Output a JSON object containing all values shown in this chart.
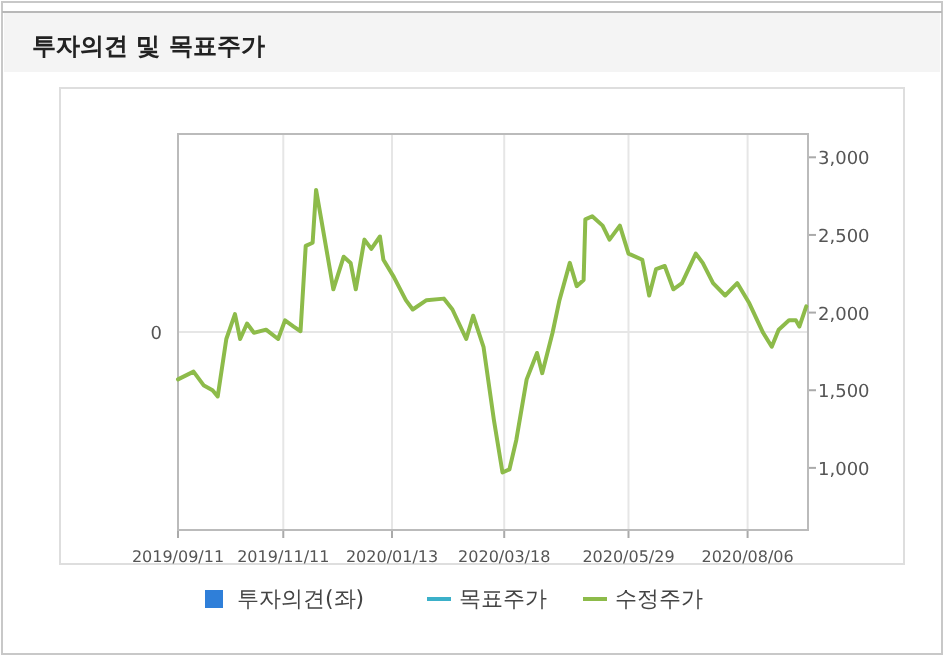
{
  "chart_data": {
    "type": "line",
    "title": "투자의견 및 목표주가",
    "xlim": [
      "2019-09-11",
      "2020-09-10"
    ],
    "xticks": [
      {
        "value": "2019-09-11",
        "label": "2019/09/11"
      },
      {
        "value": "2019-11-11",
        "label": "2019/11/11"
      },
      {
        "value": "2020-01-13",
        "label": "2020/01/13"
      },
      {
        "value": "2020-03-18",
        "label": "2020/03/18"
      },
      {
        "value": "2020-05-29",
        "label": "2020/05/29"
      },
      {
        "value": "2020-08-06",
        "label": "2020/08/06"
      }
    ],
    "annotations": [
      "0"
    ],
    "y2lim": [
      600,
      3150
    ],
    "y2ticks": [
      {
        "value": 1000,
        "label": "1,000"
      },
      {
        "value": 1500,
        "label": "1,500"
      },
      {
        "value": 2000,
        "label": "2,000"
      },
      {
        "value": 2500,
        "label": "2,500"
      },
      {
        "value": 3000,
        "label": "3,000"
      }
    ],
    "grid": true,
    "legend": "bottom",
    "series": [
      {
        "name": "투자의견(좌)",
        "type": "bar",
        "color": "#2f7fd9"
      },
      {
        "name": "목표주가",
        "type": "line",
        "axis": "y2",
        "color": "#3bb0c9"
      },
      {
        "name": "수정주가",
        "axis": "y2",
        "color": "#8dbb4a",
        "x": [
          "2019-09-11",
          "2019-09-20",
          "2019-09-26",
          "2019-10-01",
          "2019-10-04",
          "2019-10-09",
          "2019-10-14",
          "2019-10-17",
          "2019-10-21",
          "2019-10-25",
          "2019-11-01",
          "2019-11-08",
          "2019-11-12",
          "2019-11-17",
          "2019-11-21",
          "2019-11-24",
          "2019-11-28",
          "2019-11-30",
          "2019-12-03",
          "2019-12-10",
          "2019-12-16",
          "2019-12-20",
          "2019-12-23",
          "2019-12-28",
          "2020-01-01",
          "2020-01-06",
          "2020-01-08",
          "2020-01-14",
          "2020-01-21",
          "2020-01-25",
          "2020-02-02",
          "2020-02-12",
          "2020-02-17",
          "2020-02-25",
          "2020-02-29",
          "2020-03-06",
          "2020-03-12",
          "2020-03-17",
          "2020-03-21",
          "2020-03-25",
          "2020-03-31",
          "2020-04-06",
          "2020-04-09",
          "2020-04-15",
          "2020-04-19",
          "2020-04-25",
          "2020-04-29",
          "2020-05-03",
          "2020-05-04",
          "2020-05-08",
          "2020-05-14",
          "2020-05-18",
          "2020-05-24",
          "2020-05-29",
          "2020-06-06",
          "2020-06-10",
          "2020-06-14",
          "2020-06-19",
          "2020-06-24",
          "2020-06-29",
          "2020-07-07",
          "2020-07-11",
          "2020-07-17",
          "2020-07-24",
          "2020-07-31",
          "2020-08-07",
          "2020-08-15",
          "2020-08-20",
          "2020-08-24",
          "2020-08-30",
          "2020-09-03",
          "2020-09-05",
          "2020-09-09"
        ],
        "values": [
          1570,
          1620,
          1530,
          1500,
          1460,
          1830,
          1990,
          1830,
          1930,
          1870,
          1890,
          1830,
          1950,
          1910,
          1880,
          2430,
          2450,
          2790,
          2600,
          2150,
          2360,
          2320,
          2150,
          2470,
          2410,
          2490,
          2340,
          2230,
          2080,
          2020,
          2080,
          2090,
          2020,
          1830,
          1980,
          1780,
          1310,
          970,
          990,
          1180,
          1570,
          1740,
          1610,
          1870,
          2080,
          2320,
          2170,
          2210,
          2600,
          2620,
          2560,
          2470,
          2560,
          2380,
          2340,
          2110,
          2280,
          2300,
          2150,
          2190,
          2380,
          2320,
          2190,
          2110,
          2190,
          2060,
          1870,
          1780,
          1890,
          1950,
          1950,
          1910,
          2040
        ]
      }
    ]
  }
}
